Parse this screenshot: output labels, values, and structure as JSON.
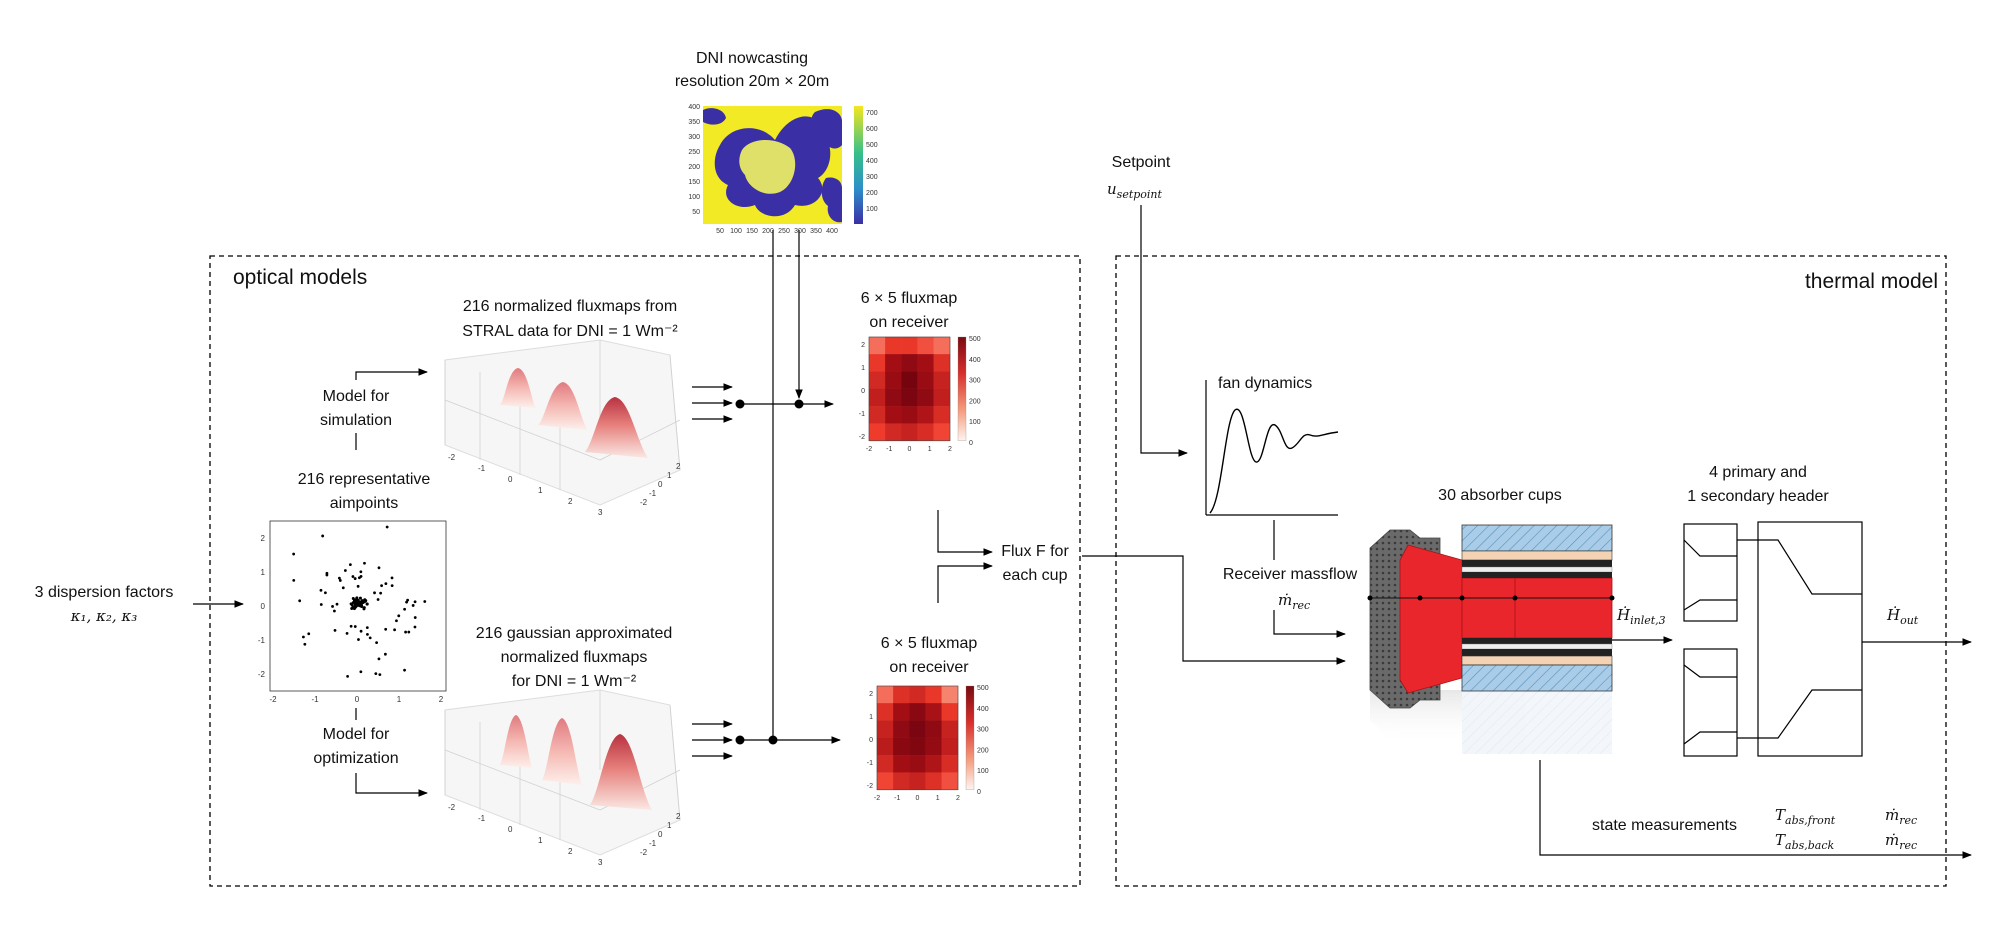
{
  "panels": {
    "optical": {
      "title": "optical models"
    },
    "thermal": {
      "title": "thermal model"
    }
  },
  "labels": {
    "dni_title_1": "DNI nowcasting",
    "dni_title_2": "resolution 20m × 20m",
    "setpoint": "Setpoint",
    "setpoint_var": "u",
    "setpoint_sub": "setpoint",
    "dispersion_1": "3 dispersion factors",
    "dispersion_2": "κ₁, κ₂, κ₃",
    "aimpoints_1": "216 representative",
    "aimpoints_2": "aimpoints",
    "model_sim_1": "Model for",
    "model_sim_2": "simulation",
    "model_opt_1": "Model for",
    "model_opt_2": "optimization",
    "stral_1": "216 normalized fluxmaps from",
    "stral_2": "STRAL data for DNI = 1 Wm⁻²",
    "gauss_1": "216 gaussian approximated",
    "gauss_2": "normalized fluxmaps",
    "gauss_3": "for DNI = 1 Wm⁻²",
    "fluxmap_top_1": "6 × 5 fluxmap",
    "fluxmap_top_2": "on receiver",
    "fluxmap_bot_1": "6 × 5 fluxmap",
    "fluxmap_bot_2": "on receiver",
    "flux_1": "Flux F for",
    "flux_2": "each cup",
    "fan": "fan dynamics",
    "massflow_1": "Receiver massflow",
    "massflow_2": "ṁ",
    "massflow_sub": "rec",
    "absorber": "30 absorber cups",
    "header_1": "4 primary and",
    "header_2": "1 secondary header",
    "h_inlet": "Ḣ",
    "h_inlet_sub": "inlet,3",
    "h_out": "Ḣ",
    "h_out_sub": "out",
    "state": "state measurements",
    "t_front": "T",
    "t_front_sub": "abs,front",
    "t_back": "T",
    "t_back_sub": "abs,back",
    "m_rec_1": "ṁ",
    "m_rec_1_sub": "rec",
    "m_rec_2": "ṁ",
    "m_rec_2_sub": "rec"
  },
  "dni_map": {
    "y_ticks": [
      "400",
      "350",
      "300",
      "250",
      "200",
      "150",
      "100",
      "50"
    ],
    "x_ticks": [
      "50",
      "100",
      "150",
      "200",
      "250",
      "300",
      "350",
      "400"
    ],
    "cbar_ticks": [
      "700",
      "600",
      "500",
      "400",
      "300",
      "200",
      "100"
    ],
    "colors": {
      "clear": "#f1ea24",
      "cloud": "#3b2fa6",
      "mid": "#dfe06a"
    }
  },
  "scatter_plot": {
    "x_ticks": [
      "-2",
      "-1",
      "0",
      "1",
      "2"
    ],
    "y_ticks": [
      "2",
      "1",
      "0",
      "-1",
      "-2"
    ]
  },
  "surface_plots": {
    "x_ticks": [
      "-2",
      "-1",
      "0",
      "1",
      "2",
      "3"
    ],
    "side_ticks": [
      "-2",
      "-1",
      "0",
      "1",
      "2"
    ]
  },
  "fluxmap_top": {
    "x_ticks": [
      "-2",
      "-1",
      "0",
      "1",
      "2"
    ],
    "y_ticks": [
      "2",
      "1",
      "0",
      "-1",
      "-2"
    ],
    "cbar_ticks": [
      "500",
      "400",
      "300",
      "200",
      "100",
      "0"
    ],
    "cells": [
      [
        200,
        260,
        260,
        230,
        200
      ],
      [
        260,
        380,
        420,
        380,
        280
      ],
      [
        300,
        400,
        470,
        400,
        320
      ],
      [
        330,
        420,
        460,
        420,
        330
      ],
      [
        300,
        380,
        400,
        360,
        290
      ],
      [
        250,
        300,
        320,
        290,
        240
      ]
    ]
  },
  "fluxmap_bot": {
    "x_ticks": [
      "-2",
      "-1",
      "0",
      "1",
      "2"
    ],
    "y_ticks": [
      "2",
      "1",
      "0",
      "-1",
      "-2"
    ],
    "cbar_ticks": [
      "500",
      "400",
      "300",
      "200",
      "100",
      "0"
    ],
    "cells": [
      [
        200,
        280,
        300,
        260,
        180
      ],
      [
        280,
        380,
        430,
        370,
        260
      ],
      [
        320,
        420,
        460,
        420,
        320
      ],
      [
        340,
        430,
        450,
        410,
        330
      ],
      [
        300,
        380,
        400,
        360,
        290
      ],
      [
        240,
        300,
        320,
        280,
        230
      ]
    ]
  },
  "colors": {
    "absorber_red": "#e8262c",
    "hatch_blue": "#a9cde8",
    "beige": "#f3d3b4",
    "dark_grey": "#555555"
  }
}
